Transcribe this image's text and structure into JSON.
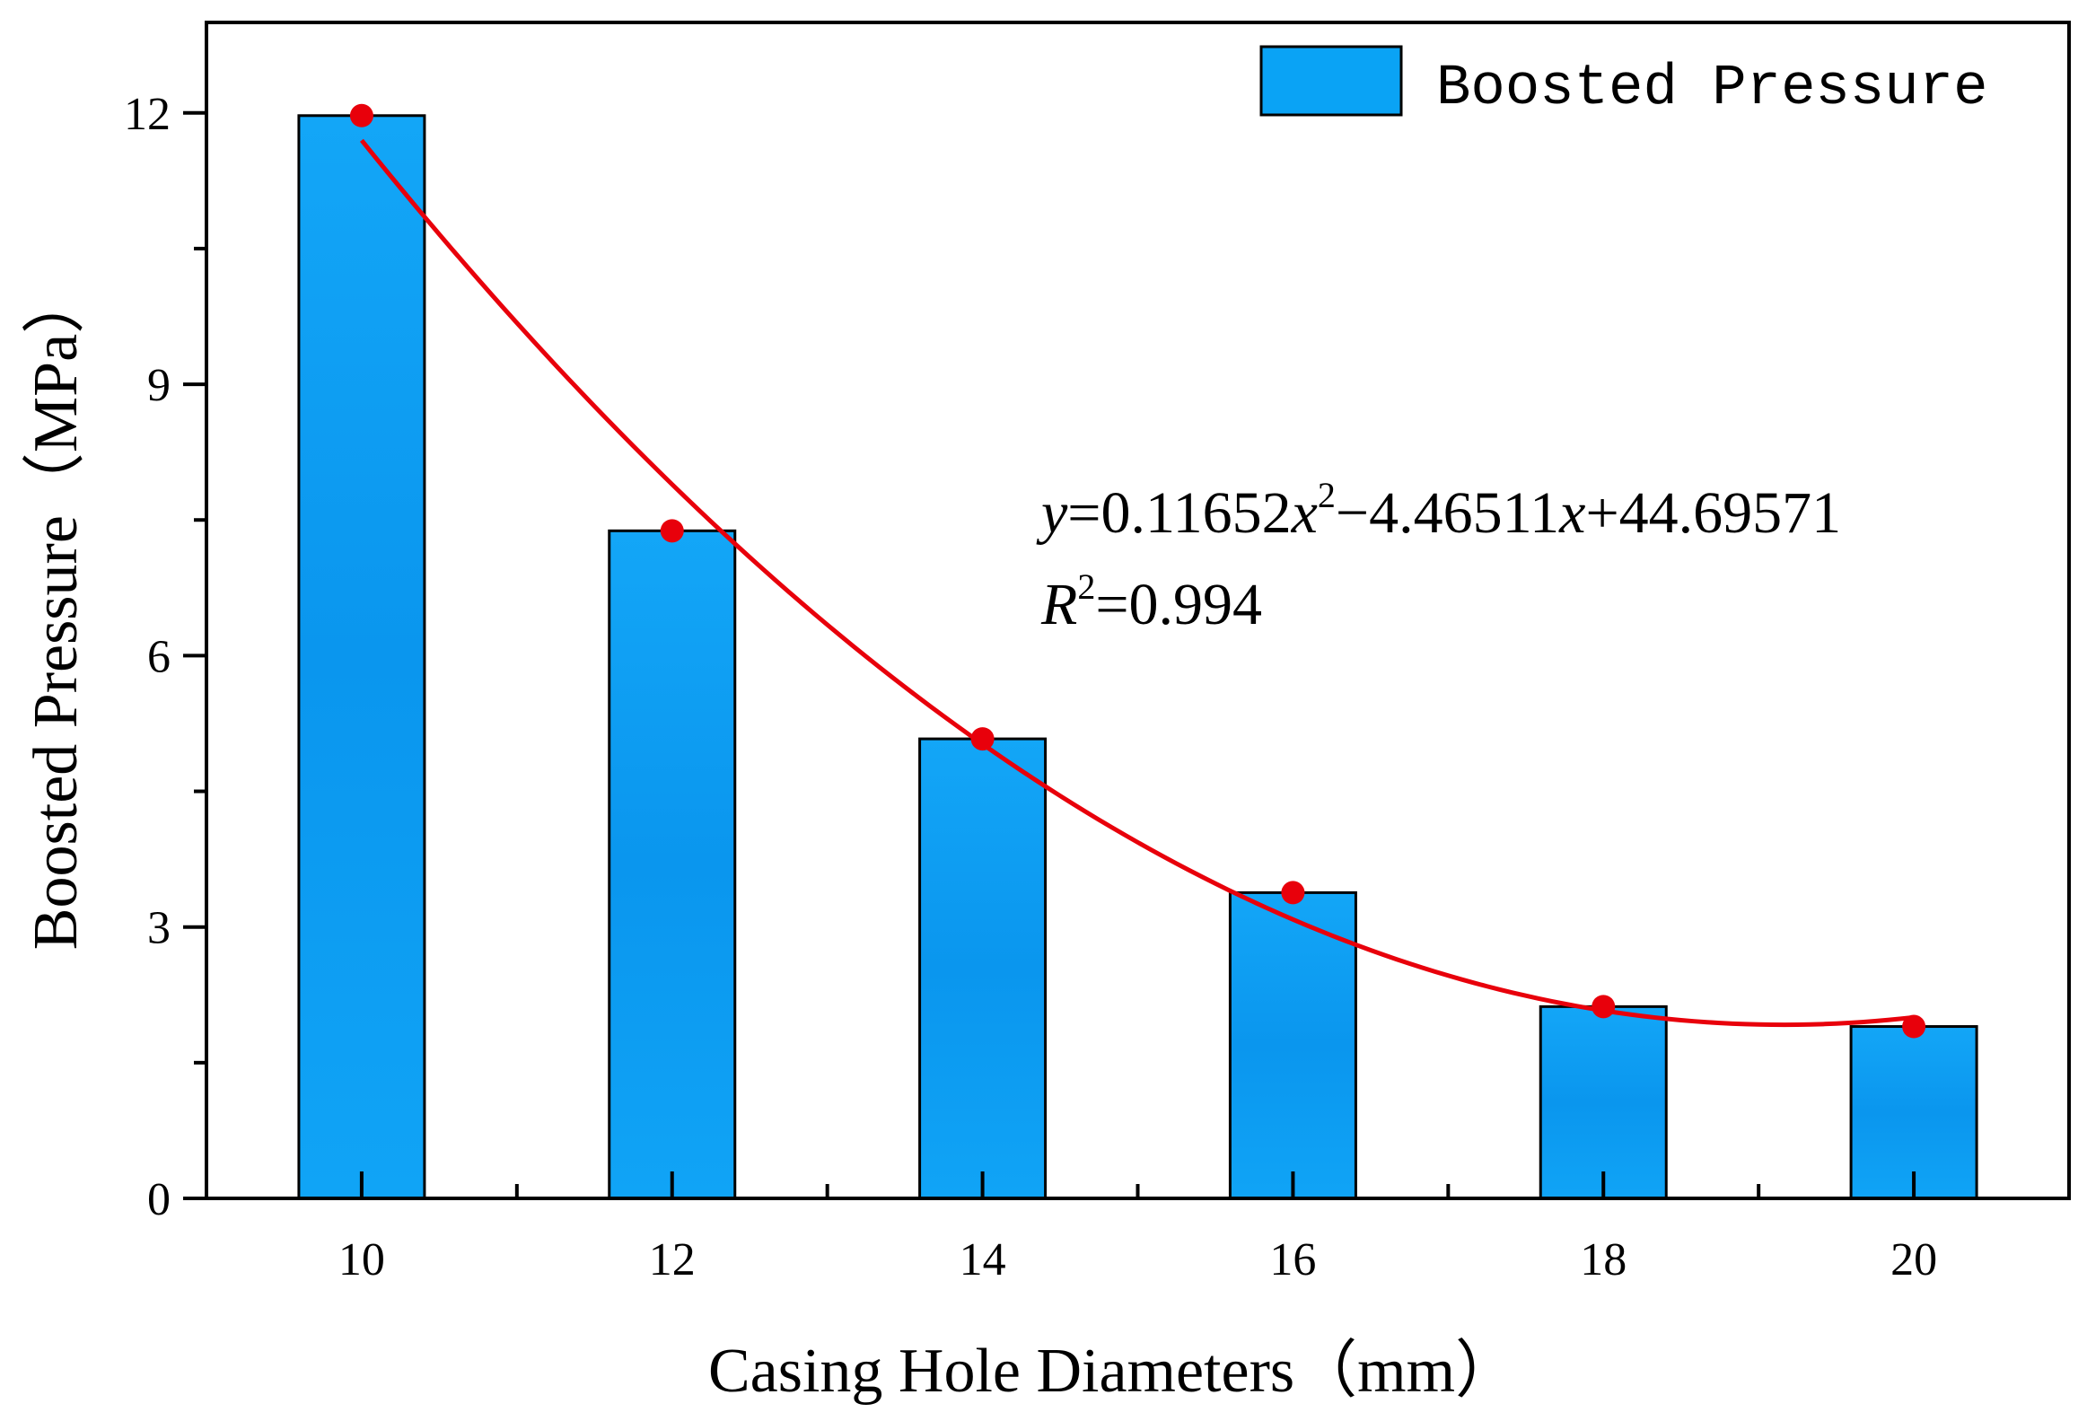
{
  "chart_data": {
    "type": "bar",
    "title": "",
    "categories": [
      "10",
      "12",
      "14",
      "16",
      "18",
      "20"
    ],
    "x": [
      10,
      12,
      14,
      16,
      18,
      20
    ],
    "series": [
      {
        "name": "Boosted Pressure",
        "values": [
          11.97,
          7.38,
          5.08,
          3.38,
          2.12,
          1.9
        ],
        "color": "#0aa3f5"
      }
    ],
    "fit": {
      "type": "quadratic",
      "coefficients": {
        "a": 0.11652,
        "b": -4.46511,
        "c": 44.69571
      },
      "color": "#e8000b",
      "equation": {
        "y_var": "y",
        "eq1": "=0.11652",
        "x1": "x",
        "sup1": "2",
        "mid": "−4.46511",
        "x2": "x",
        "tail": "+44.69571",
        "r_var": "R",
        "r_sup": "2",
        "r_val": "=0.994"
      }
    },
    "xlabel": "Casing Hole Diameters（mm）",
    "ylabel": "Boosted Pressure（MPa）",
    "xlim": [
      9,
      21
    ],
    "ylim": [
      0,
      13
    ],
    "yticks": [
      0,
      3,
      6,
      9,
      12
    ],
    "yticks_minor": [
      1.5,
      4.5,
      7.5,
      10.5
    ],
    "xticks_minor": [
      11,
      13,
      15,
      17,
      19
    ],
    "legend": {
      "position": "top-right",
      "label": "Boosted Pressure"
    },
    "grid": false
  }
}
